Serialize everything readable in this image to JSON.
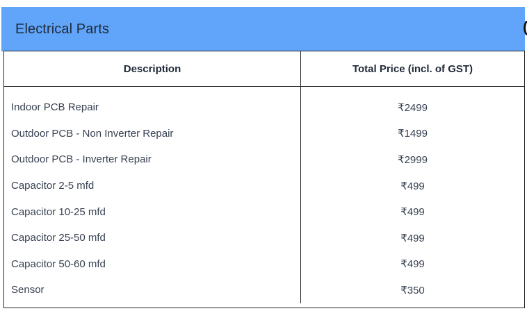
{
  "section": {
    "title": "Electrical Parts",
    "edge_glyph": "("
  },
  "table": {
    "headers": {
      "description": "Description",
      "price": "Total Price (incl. of GST)"
    },
    "rows": [
      {
        "description": "Indoor PCB Repair",
        "price": "₹2499"
      },
      {
        "description": "Outdoor PCB - Non Inverter Repair",
        "price": "₹1499"
      },
      {
        "description": "Outdoor PCB - Inverter Repair",
        "price": "₹2999"
      },
      {
        "description": "Capacitor 2-5 mfd",
        "price": "₹499"
      },
      {
        "description": "Capacitor 10-25 mfd",
        "price": "₹499"
      },
      {
        "description": "Capacitor 25-50 mfd",
        "price": "₹499"
      },
      {
        "description": "Capacitor 50-60 mfd",
        "price": "₹499"
      },
      {
        "description": "Sensor",
        "price": "₹350"
      }
    ]
  },
  "colors": {
    "header_bar": "#60a5fa",
    "border": "#222222"
  }
}
